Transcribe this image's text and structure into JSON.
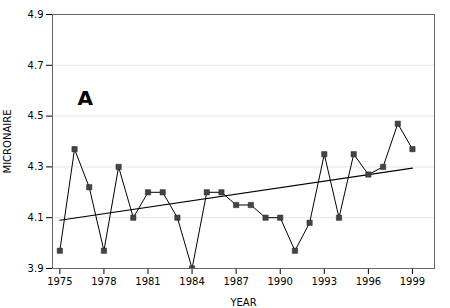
{
  "chart_data": {
    "type": "line",
    "x": [
      1975,
      1976,
      1977,
      1978,
      1979,
      1980,
      1981,
      1982,
      1983,
      1984,
      1985,
      1986,
      1987,
      1988,
      1989,
      1990,
      1991,
      1992,
      1993,
      1994,
      1995,
      1996,
      1997,
      1998,
      1999
    ],
    "values": [
      3.97,
      4.37,
      4.22,
      3.97,
      4.3,
      4.1,
      4.2,
      4.2,
      4.1,
      3.9,
      4.2,
      4.2,
      4.15,
      4.15,
      4.1,
      4.1,
      3.97,
      4.08,
      4.35,
      4.1,
      4.35,
      4.27,
      4.3,
      4.47,
      4.37
    ],
    "color": "#000000",
    "marker": "square",
    "trend_line": {
      "x": [
        1975,
        1999
      ],
      "values": [
        4.09,
        4.295
      ],
      "color": "#000000"
    },
    "annotations": [
      {
        "text": "A",
        "x": 1976.2,
        "y": 4.6
      }
    ],
    "xlabel": "YEAR",
    "ylabel": "MICRONAIRE",
    "xlim": [
      1974.5,
      2000.5
    ],
    "xticks": [
      1975,
      1978,
      1981,
      1984,
      1987,
      1990,
      1993,
      1996,
      1999
    ],
    "ylim": [
      3.9,
      4.9
    ],
    "yticks": [
      3.9,
      4.1,
      4.3,
      4.5,
      4.7,
      4.9
    ],
    "grid": "y"
  }
}
